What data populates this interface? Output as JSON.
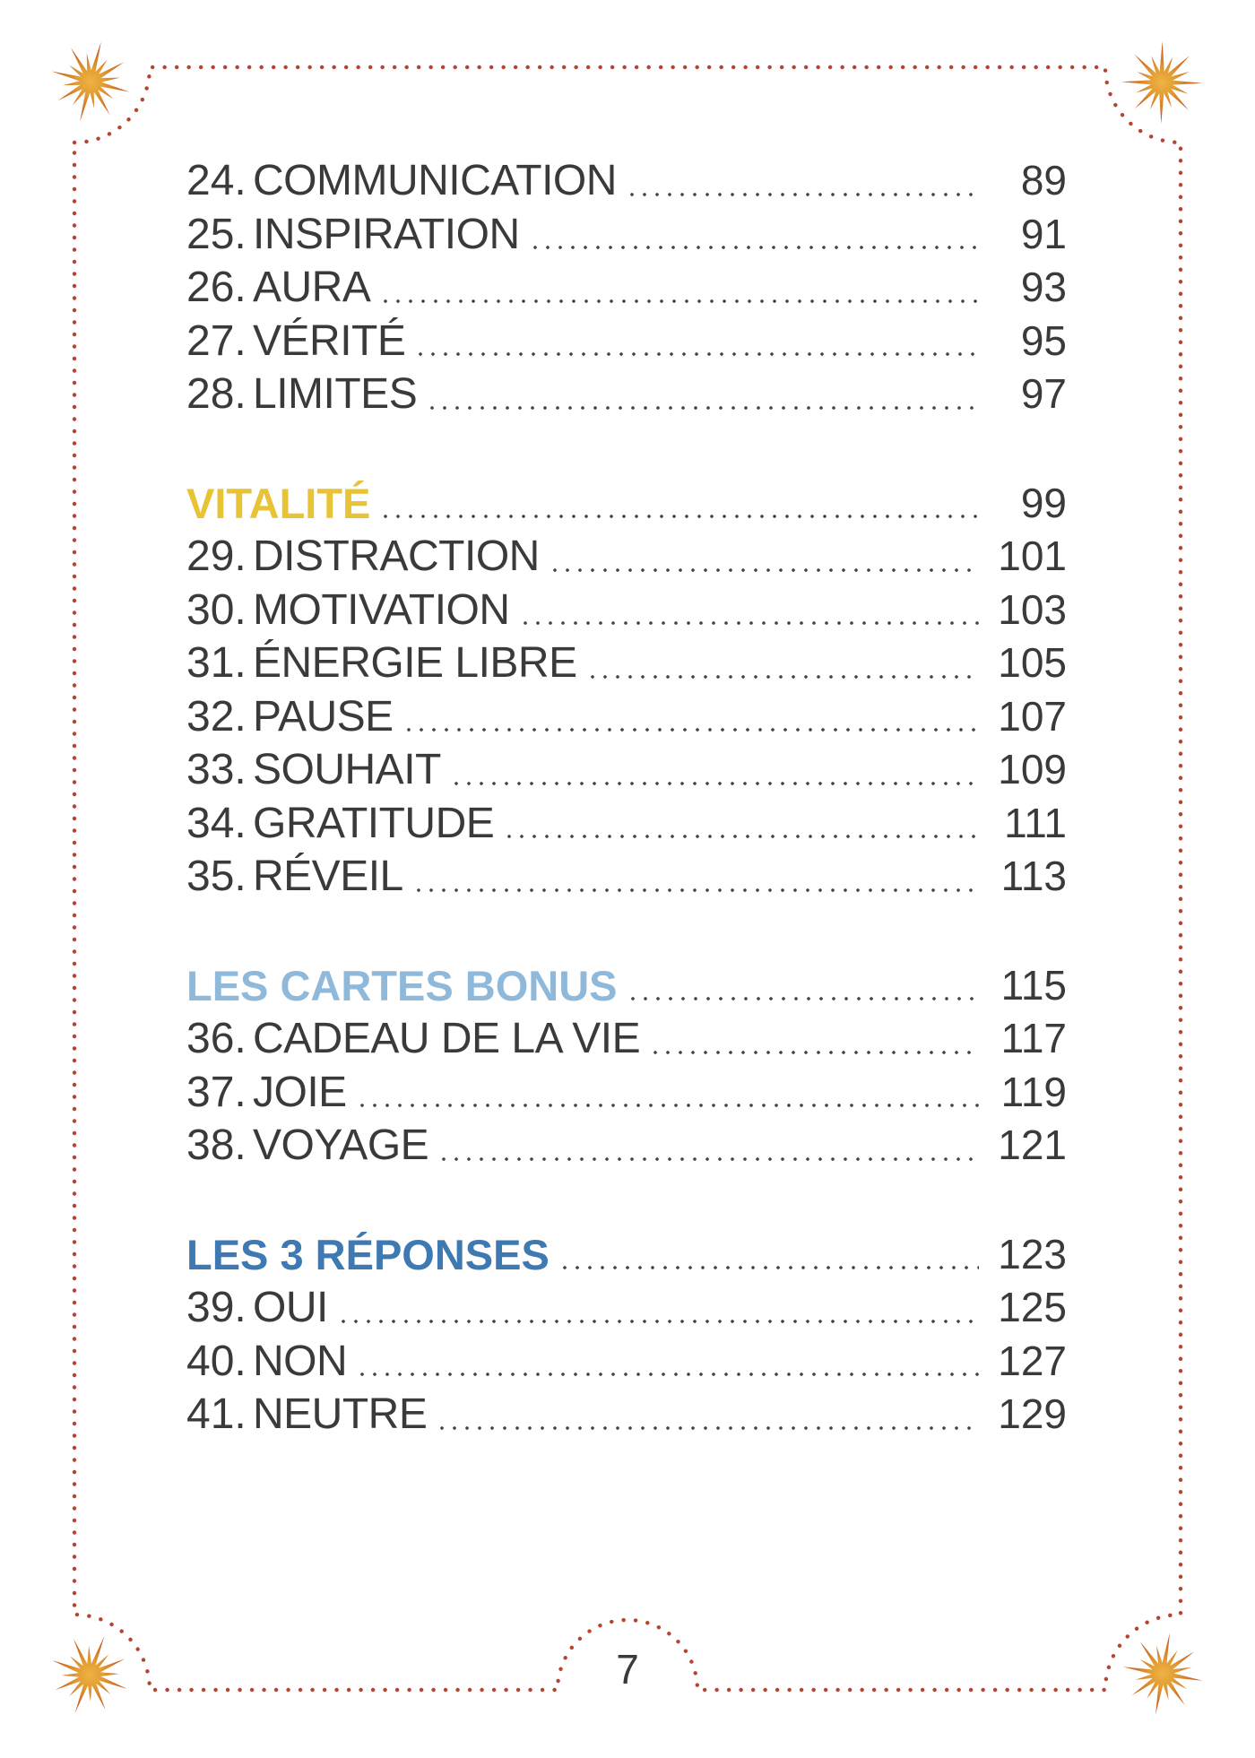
{
  "colors": {
    "border_dots": "#b64530",
    "body_text": "#3a3a3a",
    "leader_dots": "#414141",
    "star_core": "#efb345",
    "star_tips": "#c44d1f",
    "vitalite": "#e7c335",
    "cartes_bonus": "#8fb9da",
    "reponses": "#3f79b2"
  },
  "decorations": {
    "corner_icon": "starburst-icon",
    "border_style": "dotted-frame-with-corner-arcs-and-bottom-arch"
  },
  "toc": {
    "sections": [
      {
        "heading": null,
        "items": [
          {
            "num": "24.",
            "title": "COMMUNICATION",
            "page": "89"
          },
          {
            "num": "25.",
            "title": "INSPIRATION",
            "page": "91"
          },
          {
            "num": "26.",
            "title": "AURA",
            "page": "93"
          },
          {
            "num": "27.",
            "title": "VÉRITÉ",
            "page": "95"
          },
          {
            "num": "28.",
            "title": "LIMITES",
            "page": "97"
          }
        ]
      },
      {
        "heading": {
          "label": "VITALITÉ",
          "page": "99",
          "color_key": "vitalite"
        },
        "items": [
          {
            "num": "29.",
            "title": "DISTRACTION",
            "page": "101"
          },
          {
            "num": "30.",
            "title": "MOTIVATION",
            "page": "103"
          },
          {
            "num": "31.",
            "title": "ÉNERGIE LIBRE",
            "page": "105"
          },
          {
            "num": "32.",
            "title": "PAUSE",
            "page": "107"
          },
          {
            "num": "33.",
            "title": "SOUHAIT",
            "page": "109"
          },
          {
            "num": "34.",
            "title": "GRATITUDE",
            "page": "111"
          },
          {
            "num": "35.",
            "title": "RÉVEIL",
            "page": "113"
          }
        ]
      },
      {
        "heading": {
          "label": "LES CARTES BONUS",
          "page": "115",
          "color_key": "cartes_bonus"
        },
        "items": [
          {
            "num": "36.",
            "title": "CADEAU DE LA VIE",
            "page": "117"
          },
          {
            "num": "37.",
            "title": "JOIE",
            "page": "119"
          },
          {
            "num": "38.",
            "title": "VOYAGE",
            "page": "121"
          }
        ]
      },
      {
        "heading": {
          "label": "LES 3 RÉPONSES",
          "page": "123",
          "color_key": "reponses"
        },
        "items": [
          {
            "num": "39.",
            "title": "OUI",
            "page": "125"
          },
          {
            "num": "40.",
            "title": "NON",
            "page": "127"
          },
          {
            "num": "41.",
            "title": "NEUTRE",
            "page": "129"
          }
        ]
      }
    ]
  },
  "footer": {
    "page_number": "7"
  }
}
